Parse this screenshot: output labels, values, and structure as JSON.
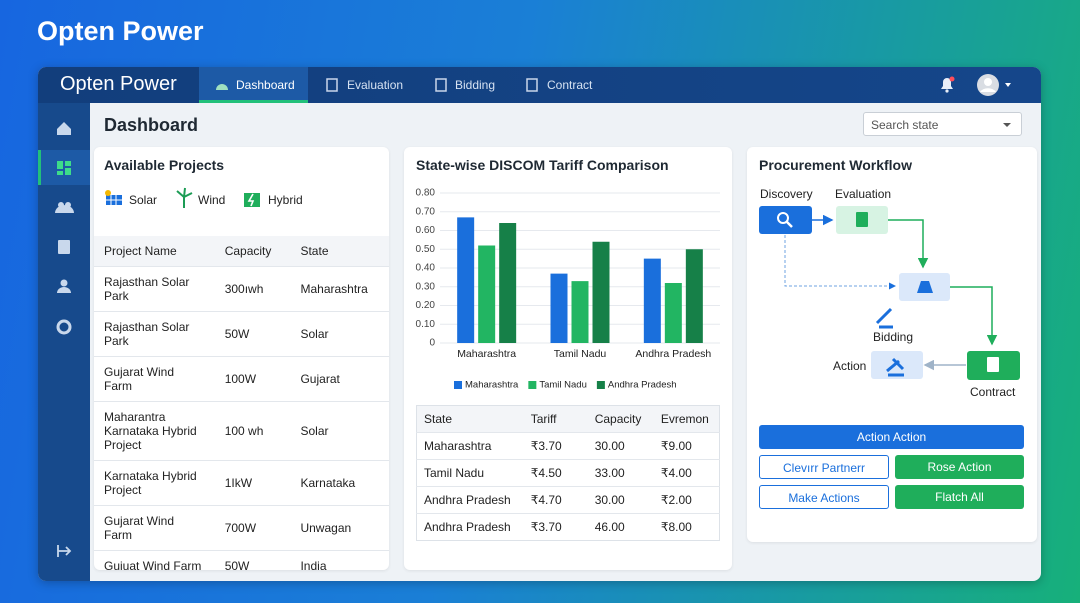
{
  "app_title": "Opten Power",
  "nav": {
    "brand": "Opten Power",
    "tabs": [
      "Dashboard",
      "Evaluation",
      "Bidding",
      "Contract"
    ]
  },
  "page_title": "Dashboard",
  "search_placeholder": "Search state",
  "projects": {
    "title": "Available Projects",
    "filters": [
      "Solar",
      "Wind",
      "Hybrid"
    ],
    "columns": [
      "Project Name",
      "Capacity",
      "State"
    ],
    "rows": [
      [
        "Rajasthan Solar Park",
        "300ıwh",
        "Maharashtra"
      ],
      [
        "Rajasthan Solar Park",
        "50W",
        "Solar"
      ],
      [
        "Gujarat Wind Farm",
        "100W",
        "Gujarat"
      ],
      [
        "Maharantra Karnataka Hybrid Project",
        "100 wh",
        "Solar"
      ],
      [
        "Karnataka Hybrid Project",
        "1IkW",
        "Karnataka"
      ],
      [
        "Gujarat Wind Farm",
        "700W",
        "Unwagan"
      ],
      [
        "Guiuat Wind Farm",
        "50W",
        "India"
      ]
    ]
  },
  "chart_data": {
    "type": "bar",
    "title": "State-wise DISCOM Tariff Comparison",
    "categories": [
      "Maharashtra",
      "Tamil Nadu",
      "Andhra Pradesh"
    ],
    "series": [
      {
        "name": "Maharashtra",
        "color": "#1a6fdc",
        "values": [
          0.67,
          0.37,
          0.45
        ]
      },
      {
        "name": "Tamil Nadu",
        "color": "#22b562",
        "values": [
          0.52,
          0.33,
          0.32
        ]
      },
      {
        "name": "Andhra Pradesh",
        "color": "#168048",
        "values": [
          0.64,
          0.54,
          0.5
        ]
      }
    ],
    "ylim": [
      0,
      0.8
    ],
    "yticks": [
      0,
      {
        "value": 0.1,
        "label": "0.10"
      },
      {
        "value": 0.2,
        "label": "0.20"
      },
      {
        "value": 0.3,
        "label": "0.30"
      },
      {
        "value": 0.4,
        "label": "0.40"
      },
      {
        "value": 0.5,
        "label": "0.50"
      },
      {
        "value": 0.6,
        "label": "0.60"
      },
      {
        "value": 0.7,
        "label": "0.70"
      },
      {
        "value": 0.8,
        "label": "0.80"
      }
    ],
    "grid": true,
    "legend": "bottom"
  },
  "tariff_table": {
    "columns": [
      "State",
      "Tariff",
      "Capacity",
      "Evremon"
    ],
    "rows": [
      [
        "Maharashtra",
        "₹3.70",
        "30.00",
        "₹9.00"
      ],
      [
        "Tamil Nadu",
        "₹4.50",
        "33.00",
        "₹4.00"
      ],
      [
        "Andhra Pradesh",
        "₹4.70",
        "30.00",
        "₹2.00"
      ],
      [
        "Andhra Pradesh",
        "₹3.70",
        "46.00",
        "₹8.00"
      ]
    ]
  },
  "workflow": {
    "title": "Procurement Workflow",
    "nodes": [
      "Discovery",
      "Evaluation",
      "Bidding",
      "Action",
      "Contract"
    ],
    "buttons": [
      "Action Action",
      "Clevırr Partnerr",
      "Rose Action",
      "Make Actions",
      "Flatch All"
    ]
  }
}
